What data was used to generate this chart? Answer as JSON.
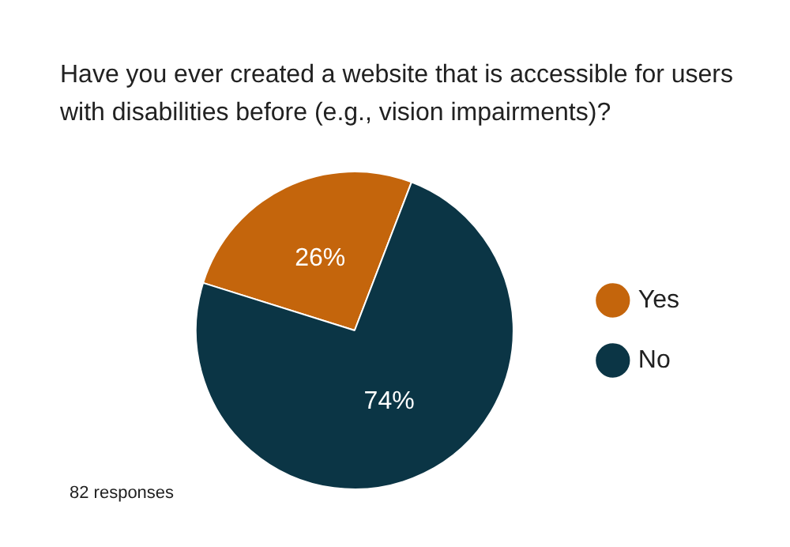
{
  "chart_data": {
    "type": "pie",
    "title": "Have you ever created a website that is accessible for users with disabilities before (e.g., vision impairments)?",
    "categories": [
      "Yes",
      "No"
    ],
    "values": [
      26,
      74
    ],
    "colors": [
      "#c4650c",
      "#0b3545"
    ],
    "value_labels": [
      "26%",
      "74%"
    ],
    "legend": "right",
    "annotations": [
      "82 responses"
    ]
  }
}
